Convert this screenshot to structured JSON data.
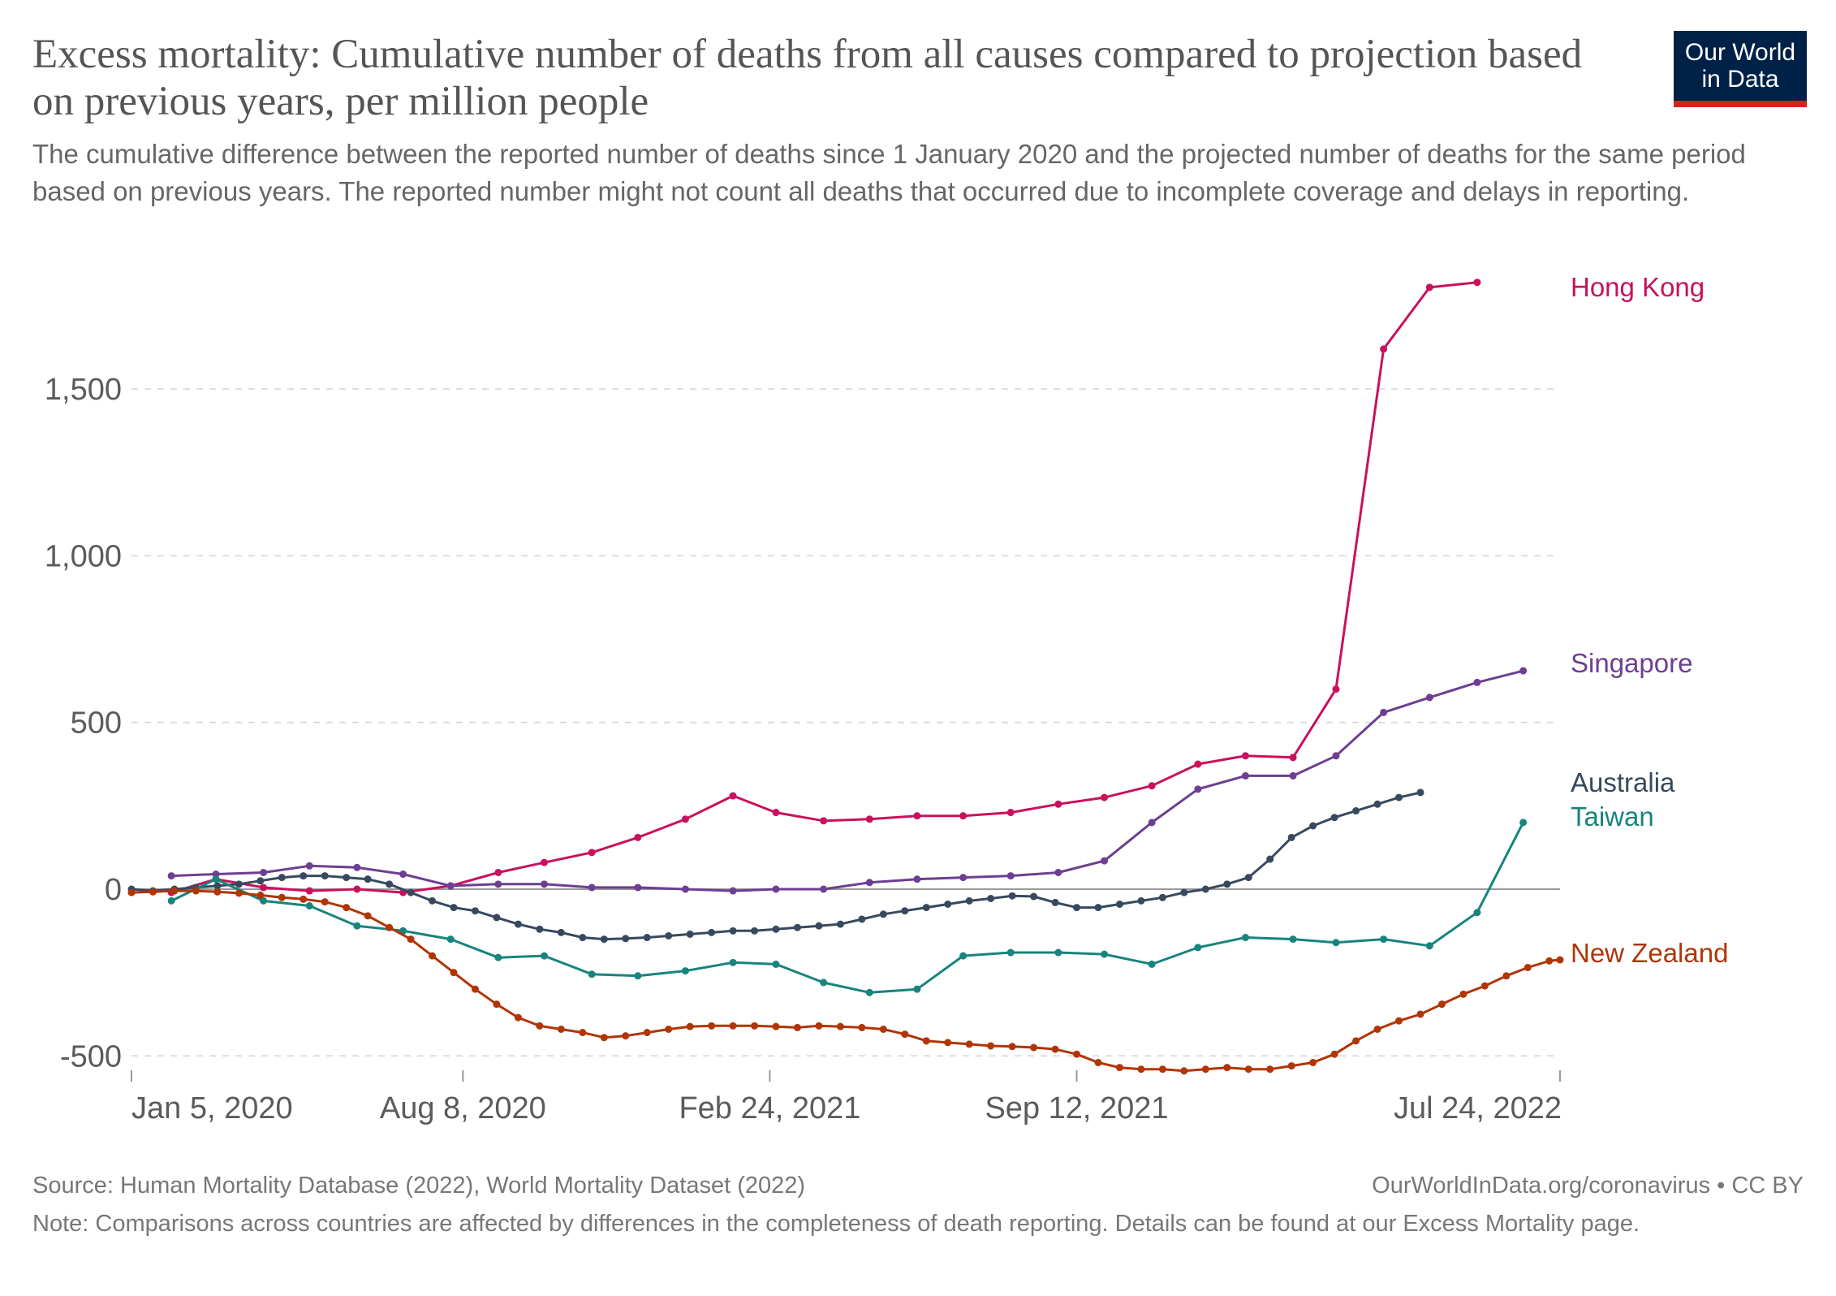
{
  "header": {
    "title": "Excess mortality: Cumulative number of deaths from all causes compared to projection based on previous years, per million people",
    "subtitle": "The cumulative difference between the reported number of deaths since 1 January 2020 and the projected number of deaths for the same period based on previous years. The reported number might not count all deaths that occurred due to incomplete coverage and delays in reporting.",
    "logo_line1": "Our World",
    "logo_line2": "in Data"
  },
  "footer": {
    "source": "Source: Human Mortality Database (2022), World Mortality Dataset (2022)",
    "credit": "OurWorldInData.org/coronavirus • CC BY",
    "note": "Note: Comparisons across countries are affected by differences in the completeness of death reporting. Details can be found at our Excess Mortality page."
  },
  "colors": {
    "hong_kong": "#c9115d",
    "singapore": "#6d3e91",
    "australia": "#38495f",
    "taiwan": "#18847e",
    "new_zealand": "#b13507",
    "logo_bg": "#002147",
    "logo_accent": "#ce261e"
  },
  "chart_data": {
    "type": "line",
    "title": "Excess mortality: Cumulative number of deaths from all causes compared to projection based on previous years, per million people",
    "xlabel": "",
    "ylabel": "",
    "x_axis": {
      "type": "date",
      "range": [
        "2020-01-05",
        "2022-07-24"
      ],
      "ticks": [
        {
          "date": "2020-01-05",
          "label": "Jan 5, 2020"
        },
        {
          "date": "2020-08-08",
          "label": "Aug 8, 2020"
        },
        {
          "date": "2021-02-24",
          "label": "Feb 24, 2021"
        },
        {
          "date": "2021-09-12",
          "label": "Sep 12, 2021"
        },
        {
          "date": "2022-07-24",
          "label": "Jul 24, 2022"
        }
      ]
    },
    "y_axis": {
      "range": [
        -560,
        1850
      ],
      "ticks": [
        {
          "value": -500,
          "label": "-500"
        },
        {
          "value": 0,
          "label": "0"
        },
        {
          "value": 500,
          "label": "500"
        },
        {
          "value": 1000,
          "label": "1,000"
        },
        {
          "value": 1500,
          "label": "1,500"
        }
      ]
    },
    "grid": true,
    "legend": "right, labels at line ends",
    "series": [
      {
        "name": "Hong Kong",
        "color": "#c9115d",
        "points": [
          [
            "2020-01-31",
            -10
          ],
          [
            "2020-02-29",
            30
          ],
          [
            "2020-03-31",
            5
          ],
          [
            "2020-04-30",
            -5
          ],
          [
            "2020-05-31",
            0
          ],
          [
            "2020-06-30",
            -10
          ],
          [
            "2020-07-31",
            10
          ],
          [
            "2020-08-31",
            50
          ],
          [
            "2020-09-30",
            80
          ],
          [
            "2020-10-31",
            110
          ],
          [
            "2020-11-30",
            155
          ],
          [
            "2020-12-31",
            210
          ],
          [
            "2021-01-31",
            280
          ],
          [
            "2021-02-28",
            230
          ],
          [
            "2021-03-31",
            205
          ],
          [
            "2021-04-30",
            210
          ],
          [
            "2021-05-31",
            220
          ],
          [
            "2021-06-30",
            220
          ],
          [
            "2021-07-31",
            230
          ],
          [
            "2021-08-31",
            255
          ],
          [
            "2021-09-30",
            275
          ],
          [
            "2021-10-31",
            310
          ],
          [
            "2021-11-30",
            375
          ],
          [
            "2021-12-31",
            400
          ],
          [
            "2022-01-31",
            395
          ],
          [
            "2022-02-28",
            600
          ],
          [
            "2022-03-31",
            1620
          ],
          [
            "2022-04-30",
            1805
          ],
          [
            "2022-05-31",
            1820
          ]
        ]
      },
      {
        "name": "Singapore",
        "color": "#6d3e91",
        "points": [
          [
            "2020-01-31",
            40
          ],
          [
            "2020-02-29",
            45
          ],
          [
            "2020-03-31",
            50
          ],
          [
            "2020-04-30",
            70
          ],
          [
            "2020-05-31",
            65
          ],
          [
            "2020-06-30",
            45
          ],
          [
            "2020-07-31",
            10
          ],
          [
            "2020-08-31",
            15
          ],
          [
            "2020-09-30",
            15
          ],
          [
            "2020-10-31",
            5
          ],
          [
            "2020-11-30",
            5
          ],
          [
            "2020-12-31",
            0
          ],
          [
            "2021-01-31",
            -5
          ],
          [
            "2021-02-28",
            0
          ],
          [
            "2021-03-31",
            0
          ],
          [
            "2021-04-30",
            20
          ],
          [
            "2021-05-31",
            30
          ],
          [
            "2021-06-30",
            35
          ],
          [
            "2021-07-31",
            40
          ],
          [
            "2021-08-31",
            50
          ],
          [
            "2021-09-30",
            85
          ],
          [
            "2021-10-31",
            200
          ],
          [
            "2021-11-30",
            300
          ],
          [
            "2021-12-31",
            340
          ],
          [
            "2022-01-31",
            340
          ],
          [
            "2022-02-28",
            400
          ],
          [
            "2022-03-31",
            530
          ],
          [
            "2022-04-30",
            575
          ],
          [
            "2022-05-31",
            620
          ],
          [
            "2022-06-30",
            655
          ]
        ]
      },
      {
        "name": "Australia",
        "color": "#38495f",
        "points": [
          [
            "2020-01-05",
            0
          ],
          [
            "2020-01-19",
            -5
          ],
          [
            "2020-02-02",
            0
          ],
          [
            "2020-02-16",
            5
          ],
          [
            "2020-03-01",
            10
          ],
          [
            "2020-03-15",
            15
          ],
          [
            "2020-03-29",
            25
          ],
          [
            "2020-04-12",
            35
          ],
          [
            "2020-04-26",
            40
          ],
          [
            "2020-05-10",
            40
          ],
          [
            "2020-05-24",
            35
          ],
          [
            "2020-06-07",
            30
          ],
          [
            "2020-06-21",
            15
          ],
          [
            "2020-07-05",
            -10
          ],
          [
            "2020-07-19",
            -35
          ],
          [
            "2020-08-02",
            -55
          ],
          [
            "2020-08-16",
            -65
          ],
          [
            "2020-08-30",
            -85
          ],
          [
            "2020-09-13",
            -105
          ],
          [
            "2020-09-27",
            -120
          ],
          [
            "2020-10-11",
            -130
          ],
          [
            "2020-10-25",
            -145
          ],
          [
            "2020-11-08",
            -150
          ],
          [
            "2020-11-22",
            -148
          ],
          [
            "2020-12-06",
            -145
          ],
          [
            "2020-12-20",
            -140
          ],
          [
            "2021-01-03",
            -135
          ],
          [
            "2021-01-17",
            -130
          ],
          [
            "2021-01-31",
            -125
          ],
          [
            "2021-02-14",
            -125
          ],
          [
            "2021-02-28",
            -120
          ],
          [
            "2021-03-14",
            -115
          ],
          [
            "2021-03-28",
            -110
          ],
          [
            "2021-04-11",
            -105
          ],
          [
            "2021-04-25",
            -90
          ],
          [
            "2021-05-09",
            -75
          ],
          [
            "2021-05-23",
            -65
          ],
          [
            "2021-06-06",
            -55
          ],
          [
            "2021-06-20",
            -45
          ],
          [
            "2021-07-04",
            -35
          ],
          [
            "2021-07-18",
            -28
          ],
          [
            "2021-08-01",
            -20
          ],
          [
            "2021-08-15",
            -22
          ],
          [
            "2021-08-29",
            -40
          ],
          [
            "2021-09-12",
            -55
          ],
          [
            "2021-09-26",
            -55
          ],
          [
            "2021-10-10",
            -45
          ],
          [
            "2021-10-24",
            -35
          ],
          [
            "2021-11-07",
            -25
          ],
          [
            "2021-11-21",
            -10
          ],
          [
            "2021-12-05",
            0
          ],
          [
            "2021-12-19",
            15
          ],
          [
            "2022-01-02",
            35
          ],
          [
            "2022-01-16",
            90
          ],
          [
            "2022-01-30",
            155
          ],
          [
            "2022-02-13",
            190
          ],
          [
            "2022-02-27",
            215
          ],
          [
            "2022-03-13",
            235
          ],
          [
            "2022-03-27",
            255
          ],
          [
            "2022-04-10",
            275
          ],
          [
            "2022-04-24",
            290
          ]
        ]
      },
      {
        "name": "Taiwan",
        "color": "#18847e",
        "points": [
          [
            "2020-01-31",
            -35
          ],
          [
            "2020-02-29",
            30
          ],
          [
            "2020-03-31",
            -35
          ],
          [
            "2020-04-30",
            -50
          ],
          [
            "2020-05-31",
            -110
          ],
          [
            "2020-06-30",
            -125
          ],
          [
            "2020-07-31",
            -150
          ],
          [
            "2020-08-31",
            -205
          ],
          [
            "2020-09-30",
            -200
          ],
          [
            "2020-10-31",
            -255
          ],
          [
            "2020-11-30",
            -260
          ],
          [
            "2020-12-31",
            -245
          ],
          [
            "2021-01-31",
            -220
          ],
          [
            "2021-02-28",
            -225
          ],
          [
            "2021-03-31",
            -280
          ],
          [
            "2021-04-30",
            -310
          ],
          [
            "2021-05-31",
            -300
          ],
          [
            "2021-06-30",
            -200
          ],
          [
            "2021-07-31",
            -190
          ],
          [
            "2021-08-31",
            -190
          ],
          [
            "2021-09-30",
            -195
          ],
          [
            "2021-10-31",
            -225
          ],
          [
            "2021-11-30",
            -175
          ],
          [
            "2021-12-31",
            -145
          ],
          [
            "2022-01-31",
            -150
          ],
          [
            "2022-02-28",
            -160
          ],
          [
            "2022-03-31",
            -150
          ],
          [
            "2022-04-30",
            -170
          ],
          [
            "2022-05-31",
            -70
          ],
          [
            "2022-06-30",
            200
          ]
        ]
      },
      {
        "name": "New Zealand",
        "color": "#b13507",
        "points": [
          [
            "2020-01-05",
            -10
          ],
          [
            "2020-01-19",
            -8
          ],
          [
            "2020-02-02",
            -5
          ],
          [
            "2020-02-16",
            -5
          ],
          [
            "2020-03-01",
            -8
          ],
          [
            "2020-03-15",
            -12
          ],
          [
            "2020-03-29",
            -18
          ],
          [
            "2020-04-12",
            -25
          ],
          [
            "2020-04-26",
            -30
          ],
          [
            "2020-05-10",
            -38
          ],
          [
            "2020-05-24",
            -55
          ],
          [
            "2020-06-07",
            -80
          ],
          [
            "2020-06-21",
            -115
          ],
          [
            "2020-07-05",
            -150
          ],
          [
            "2020-07-19",
            -200
          ],
          [
            "2020-08-02",
            -250
          ],
          [
            "2020-08-16",
            -300
          ],
          [
            "2020-08-30",
            -345
          ],
          [
            "2020-09-13",
            -385
          ],
          [
            "2020-09-27",
            -410
          ],
          [
            "2020-10-11",
            -420
          ],
          [
            "2020-10-25",
            -430
          ],
          [
            "2020-11-08",
            -445
          ],
          [
            "2020-11-22",
            -440
          ],
          [
            "2020-12-06",
            -430
          ],
          [
            "2020-12-20",
            -420
          ],
          [
            "2021-01-03",
            -412
          ],
          [
            "2021-01-17",
            -410
          ],
          [
            "2021-01-31",
            -410
          ],
          [
            "2021-02-14",
            -410
          ],
          [
            "2021-02-28",
            -412
          ],
          [
            "2021-03-14",
            -415
          ],
          [
            "2021-03-28",
            -410
          ],
          [
            "2021-04-11",
            -412
          ],
          [
            "2021-04-25",
            -415
          ],
          [
            "2021-05-09",
            -420
          ],
          [
            "2021-05-23",
            -435
          ],
          [
            "2021-06-06",
            -455
          ],
          [
            "2021-06-20",
            -460
          ],
          [
            "2021-07-04",
            -465
          ],
          [
            "2021-07-18",
            -470
          ],
          [
            "2021-08-01",
            -472
          ],
          [
            "2021-08-15",
            -475
          ],
          [
            "2021-08-29",
            -480
          ],
          [
            "2021-09-12",
            -495
          ],
          [
            "2021-09-26",
            -520
          ],
          [
            "2021-10-10",
            -535
          ],
          [
            "2021-10-24",
            -540
          ],
          [
            "2021-11-07",
            -540
          ],
          [
            "2021-11-21",
            -545
          ],
          [
            "2021-12-05",
            -540
          ],
          [
            "2021-12-19",
            -535
          ],
          [
            "2022-01-02",
            -540
          ],
          [
            "2022-01-16",
            -540
          ],
          [
            "2022-01-30",
            -530
          ],
          [
            "2022-02-13",
            -520
          ],
          [
            "2022-02-27",
            -495
          ],
          [
            "2022-03-13",
            -455
          ],
          [
            "2022-03-27",
            -420
          ],
          [
            "2022-04-10",
            -395
          ],
          [
            "2022-04-24",
            -375
          ],
          [
            "2022-05-08",
            -345
          ],
          [
            "2022-05-22",
            -315
          ],
          [
            "2022-06-05",
            -290
          ],
          [
            "2022-06-19",
            -260
          ],
          [
            "2022-07-03",
            -235
          ],
          [
            "2022-07-17",
            -215
          ],
          [
            "2022-07-24",
            -212
          ]
        ]
      }
    ]
  }
}
